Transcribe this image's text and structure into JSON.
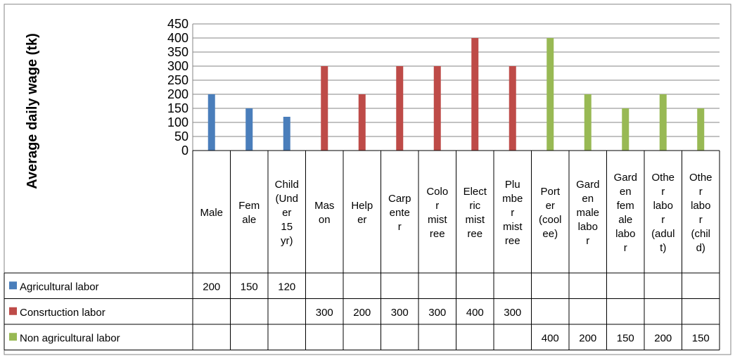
{
  "colors": {
    "agricultural": "#4A7EBB",
    "construction": "#BE4B48",
    "non_agricultural": "#98B954",
    "grid": "#868686",
    "border": "#868686"
  },
  "chart_data": {
    "type": "bar",
    "title": "",
    "xlabel": "",
    "ylabel": "Average daily wage (tk)",
    "ylim": [
      0,
      450
    ],
    "yticks": [
      0,
      50,
      100,
      150,
      200,
      250,
      300,
      350,
      400,
      450
    ],
    "grid": true,
    "legend": "table-left",
    "categories": [
      "Male",
      "Female",
      "Child (Under 15 yr)",
      "Mason",
      "Helper",
      "Carpenter",
      "Color mistree",
      "Electric mistree",
      "Plumber mistree",
      "Porter (coolee)",
      "Garden male labor",
      "Garden female labor",
      "Other labor (adult)",
      "Other labor (child)"
    ],
    "category_lines": [
      [
        "Male"
      ],
      [
        "Fem",
        "ale"
      ],
      [
        "Child",
        "(Und",
        "er",
        "15",
        "yr)"
      ],
      [
        "Mas",
        "on"
      ],
      [
        "Help",
        "er"
      ],
      [
        "Carp",
        "ente",
        "r"
      ],
      [
        "Colo",
        "r",
        "mist",
        "ree"
      ],
      [
        "Elect",
        "ric",
        "mist",
        "ree"
      ],
      [
        "Plu",
        "mbe",
        "r",
        "mist",
        "ree"
      ],
      [
        "Port",
        "er",
        "(cool",
        "ee)"
      ],
      [
        "Gard",
        "en",
        "male",
        "labo",
        "r"
      ],
      [
        "Gard",
        "en",
        "fem",
        "ale",
        "labo",
        "r"
      ],
      [
        "Othe",
        "r",
        "labo",
        "r",
        "(adul",
        "t)"
      ],
      [
        "Othe",
        "r",
        "labo",
        "r",
        "(chil",
        "d)"
      ]
    ],
    "series": [
      {
        "name": "Agricultural labor",
        "color_key": "agricultural",
        "values": [
          200,
          150,
          120,
          null,
          null,
          null,
          null,
          null,
          null,
          null,
          null,
          null,
          null,
          null
        ]
      },
      {
        "name": "Consrtuction labor",
        "color_key": "construction",
        "values": [
          null,
          null,
          null,
          300,
          200,
          300,
          300,
          400,
          300,
          null,
          null,
          null,
          null,
          null
        ]
      },
      {
        "name": "Non agricultural labor",
        "color_key": "non_agricultural",
        "values": [
          null,
          null,
          null,
          null,
          null,
          null,
          null,
          null,
          null,
          400,
          200,
          150,
          200,
          150
        ]
      }
    ]
  }
}
